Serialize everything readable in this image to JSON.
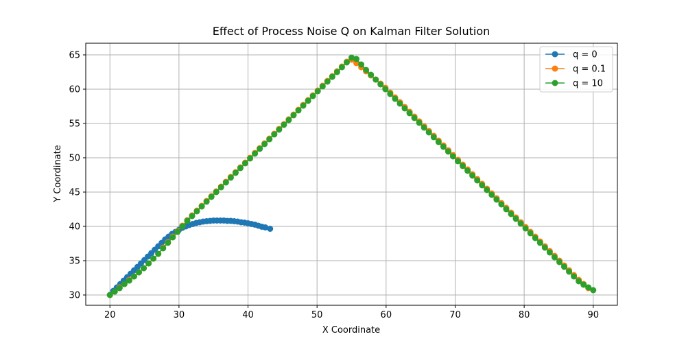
{
  "chart_data": {
    "type": "line",
    "title": "Effect of Process Noise Q on Kalman Filter Solution",
    "xlabel": "X Coordinate",
    "ylabel": "Y Coordinate",
    "xlim": [
      16.5,
      93.5
    ],
    "ylim": [
      28.5,
      66.7
    ],
    "xticks": [
      20,
      30,
      40,
      50,
      60,
      70,
      80,
      90
    ],
    "yticks": [
      30,
      35,
      40,
      45,
      50,
      55,
      60,
      65
    ],
    "grid": true,
    "legend_position": "top-right",
    "series": [
      {
        "name": "q = 0",
        "color": "#1f77b4",
        "x": [
          20.0,
          20.5,
          21.0,
          21.5,
          22.0,
          22.5,
          23.0,
          23.5,
          24.0,
          24.5,
          25.0,
          25.5,
          26.0,
          26.5,
          27.0,
          27.5,
          28.0,
          28.5,
          29.0,
          29.5,
          30.0,
          30.5,
          31.0,
          31.5,
          32.0,
          32.5,
          33.0,
          33.5,
          34.0,
          34.5,
          35.0,
          35.5,
          36.0,
          36.5,
          37.0,
          37.5,
          38.0,
          38.5,
          39.0,
          39.5,
          40.0,
          40.5,
          41.0,
          41.5,
          42.0,
          42.5,
          43.2
        ],
        "y": [
          30.0,
          30.6,
          31.1,
          31.6,
          32.1,
          32.6,
          33.1,
          33.6,
          34.1,
          34.6,
          35.1,
          35.6,
          36.1,
          36.6,
          37.1,
          37.6,
          38.1,
          38.5,
          38.9,
          39.2,
          39.5,
          39.8,
          40.0,
          40.2,
          40.35,
          40.5,
          40.6,
          40.7,
          40.75,
          40.8,
          40.85,
          40.85,
          40.85,
          40.85,
          40.8,
          40.8,
          40.75,
          40.7,
          40.6,
          40.55,
          40.45,
          40.35,
          40.25,
          40.1,
          39.95,
          39.85,
          39.65
        ]
      },
      {
        "name": "q = 0.1",
        "color": "#ff7f0e",
        "x": [
          20.0,
          20.7,
          21.4,
          22.1,
          22.8,
          23.5,
          24.2,
          24.9,
          25.6,
          26.3,
          27.0,
          27.7,
          28.4,
          29.1,
          29.8,
          30.5,
          31.2,
          31.9,
          32.6,
          33.3,
          34.0,
          34.7,
          35.4,
          36.1,
          36.8,
          37.5,
          38.2,
          38.9,
          39.6,
          40.3,
          41.0,
          41.7,
          42.4,
          43.1,
          43.8,
          44.5,
          45.2,
          45.9,
          46.6,
          47.3,
          48.0,
          48.7,
          49.4,
          50.1,
          50.8,
          51.5,
          52.2,
          52.9,
          53.6,
          54.3,
          55.0,
          55.7,
          56.4,
          57.1,
          57.8,
          58.5,
          59.2,
          59.9,
          60.6,
          61.3,
          62.0,
          62.7,
          63.4,
          64.1,
          64.8,
          65.5,
          66.2,
          66.9,
          67.6,
          68.3,
          69.0,
          69.7,
          70.4,
          71.1,
          71.8,
          72.5,
          73.2,
          73.9,
          74.6,
          75.3,
          76.0,
          76.7,
          77.4,
          78.1,
          78.8,
          79.5,
          80.2,
          80.9,
          81.6,
          82.3,
          83.0,
          83.7,
          84.4,
          85.1,
          85.8,
          86.5,
          87.2,
          87.9,
          88.6,
          89.3
        ],
        "y": [
          30.0,
          30.5,
          31.1,
          31.6,
          32.2,
          32.7,
          33.3,
          33.9,
          34.6,
          35.3,
          36.0,
          36.9,
          37.7,
          38.5,
          39.3,
          40.1,
          40.9,
          41.6,
          42.3,
          43.0,
          43.7,
          44.4,
          45.1,
          45.8,
          46.5,
          47.2,
          47.9,
          48.6,
          49.3,
          50.0,
          50.7,
          51.4,
          52.1,
          52.8,
          53.5,
          54.2,
          54.9,
          55.6,
          56.3,
          57.0,
          57.7,
          58.4,
          59.1,
          59.8,
          60.5,
          61.2,
          61.9,
          62.6,
          63.3,
          64.0,
          64.3,
          63.8,
          63.2,
          62.6,
          62.0,
          61.4,
          60.8,
          60.2,
          59.5,
          58.8,
          58.1,
          57.4,
          56.7,
          56.0,
          55.3,
          54.6,
          53.9,
          53.2,
          52.5,
          51.8,
          51.1,
          50.4,
          49.7,
          49.0,
          48.3,
          47.6,
          46.9,
          46.2,
          45.5,
          44.8,
          44.1,
          43.4,
          42.7,
          42.0,
          41.3,
          40.6,
          39.9,
          39.2,
          38.5,
          37.8,
          37.1,
          36.4,
          35.7,
          35.0,
          34.3,
          33.6,
          32.9,
          32.2,
          31.6,
          31.0
        ]
      },
      {
        "name": "q = 10",
        "color": "#2ca02c",
        "x": [
          20.0,
          20.7,
          21.4,
          22.1,
          22.8,
          23.5,
          24.2,
          24.9,
          25.6,
          26.3,
          27.0,
          27.7,
          28.4,
          29.1,
          29.8,
          30.5,
          31.2,
          31.9,
          32.6,
          33.3,
          34.0,
          34.7,
          35.4,
          36.1,
          36.8,
          37.5,
          38.2,
          38.9,
          39.6,
          40.3,
          41.0,
          41.7,
          42.4,
          43.1,
          43.8,
          44.5,
          45.2,
          45.9,
          46.6,
          47.3,
          48.0,
          48.7,
          49.4,
          50.1,
          50.8,
          51.5,
          52.2,
          52.9,
          53.6,
          54.3,
          55.0,
          55.7,
          56.4,
          57.1,
          57.8,
          58.5,
          59.2,
          59.9,
          60.6,
          61.3,
          62.0,
          62.7,
          63.4,
          64.1,
          64.8,
          65.5,
          66.2,
          66.9,
          67.6,
          68.3,
          69.0,
          69.7,
          70.4,
          71.1,
          71.8,
          72.5,
          73.2,
          73.9,
          74.6,
          75.3,
          76.0,
          76.7,
          77.4,
          78.1,
          78.8,
          79.5,
          80.2,
          80.9,
          81.6,
          82.3,
          83.0,
          83.7,
          84.4,
          85.1,
          85.8,
          86.5,
          87.2,
          87.9,
          88.6,
          89.3,
          90.0
        ],
        "y": [
          30.0,
          30.5,
          31.0,
          31.6,
          32.1,
          32.7,
          33.3,
          33.9,
          34.6,
          35.3,
          36.0,
          36.8,
          37.6,
          38.4,
          39.2,
          40.0,
          40.8,
          41.5,
          42.2,
          42.9,
          43.6,
          44.3,
          45.0,
          45.7,
          46.4,
          47.1,
          47.8,
          48.5,
          49.2,
          49.9,
          50.6,
          51.3,
          52.0,
          52.7,
          53.4,
          54.1,
          54.8,
          55.5,
          56.2,
          56.9,
          57.6,
          58.3,
          59.0,
          59.7,
          60.4,
          61.1,
          61.8,
          62.5,
          63.2,
          63.9,
          64.6,
          64.4,
          63.6,
          62.8,
          62.1,
          61.4,
          60.7,
          60.0,
          59.3,
          58.6,
          57.9,
          57.2,
          56.5,
          55.8,
          55.1,
          54.4,
          53.7,
          53.0,
          52.3,
          51.6,
          50.9,
          50.2,
          49.5,
          48.8,
          48.1,
          47.4,
          46.7,
          46.0,
          45.3,
          44.6,
          43.9,
          43.2,
          42.5,
          41.8,
          41.1,
          40.4,
          39.7,
          39.0,
          38.3,
          37.6,
          36.9,
          36.2,
          35.5,
          34.8,
          34.1,
          33.4,
          32.7,
          32.0,
          31.5,
          31.1,
          30.7
        ]
      }
    ]
  }
}
